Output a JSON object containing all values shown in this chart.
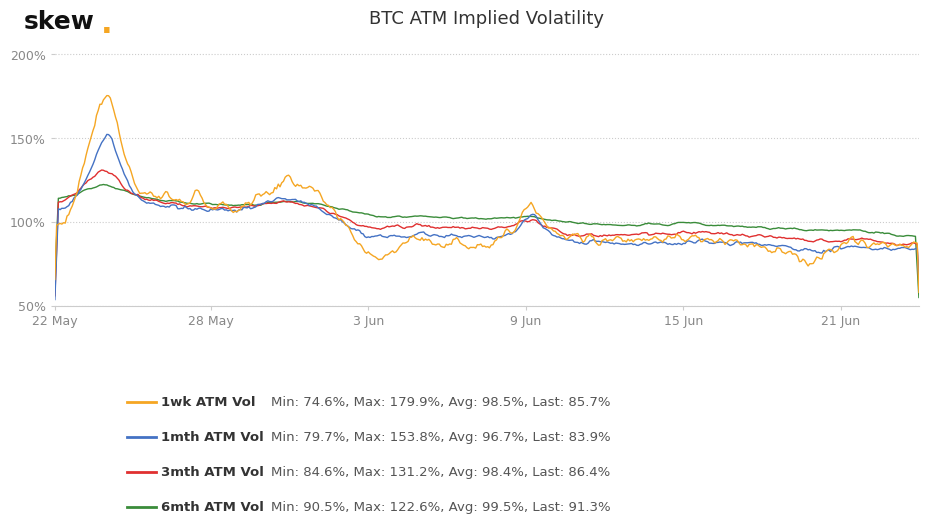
{
  "title": "BTC ATM Implied Volatility",
  "skew_dot_color": "#F5A623",
  "background_color": "#ffffff",
  "ylim": [
    50,
    210
  ],
  "yticks": [
    50,
    100,
    150,
    200
  ],
  "ytick_labels": [
    "50%",
    "100%",
    "150%",
    "200%"
  ],
  "grid_color": "#cccccc",
  "series": {
    "1wk": {
      "color": "#F5A623",
      "label": "1wk ATM Vol",
      "stats": "Min: 74.6%, Max: 179.9%, Avg: 98.5%, Last: 85.7%",
      "lw": 1.0
    },
    "1mth": {
      "color": "#4472C4",
      "label": "1mth ATM Vol",
      "stats": "Min: 79.7%, Max: 153.8%, Avg: 96.7%, Last: 83.9%",
      "lw": 1.0
    },
    "3mth": {
      "color": "#E03030",
      "label": "3mth ATM Vol",
      "stats": "Min: 84.6%, Max: 131.2%, Avg: 98.4%, Last: 86.4%",
      "lw": 1.0
    },
    "6mth": {
      "color": "#3A8C3A",
      "label": "6mth ATM Vol",
      "stats": "Min: 90.5%, Max: 122.6%, Avg: 99.5%, Last: 91.3%",
      "lw": 1.0
    }
  },
  "n_points": 500,
  "xtick_positions_frac": [
    0.0,
    0.182,
    0.364,
    0.546,
    0.728,
    0.91
  ],
  "xtick_labels": [
    "22 May",
    "28 May",
    "3 Jun",
    "9 Jun",
    "15 Jun",
    "21 Jun"
  ]
}
